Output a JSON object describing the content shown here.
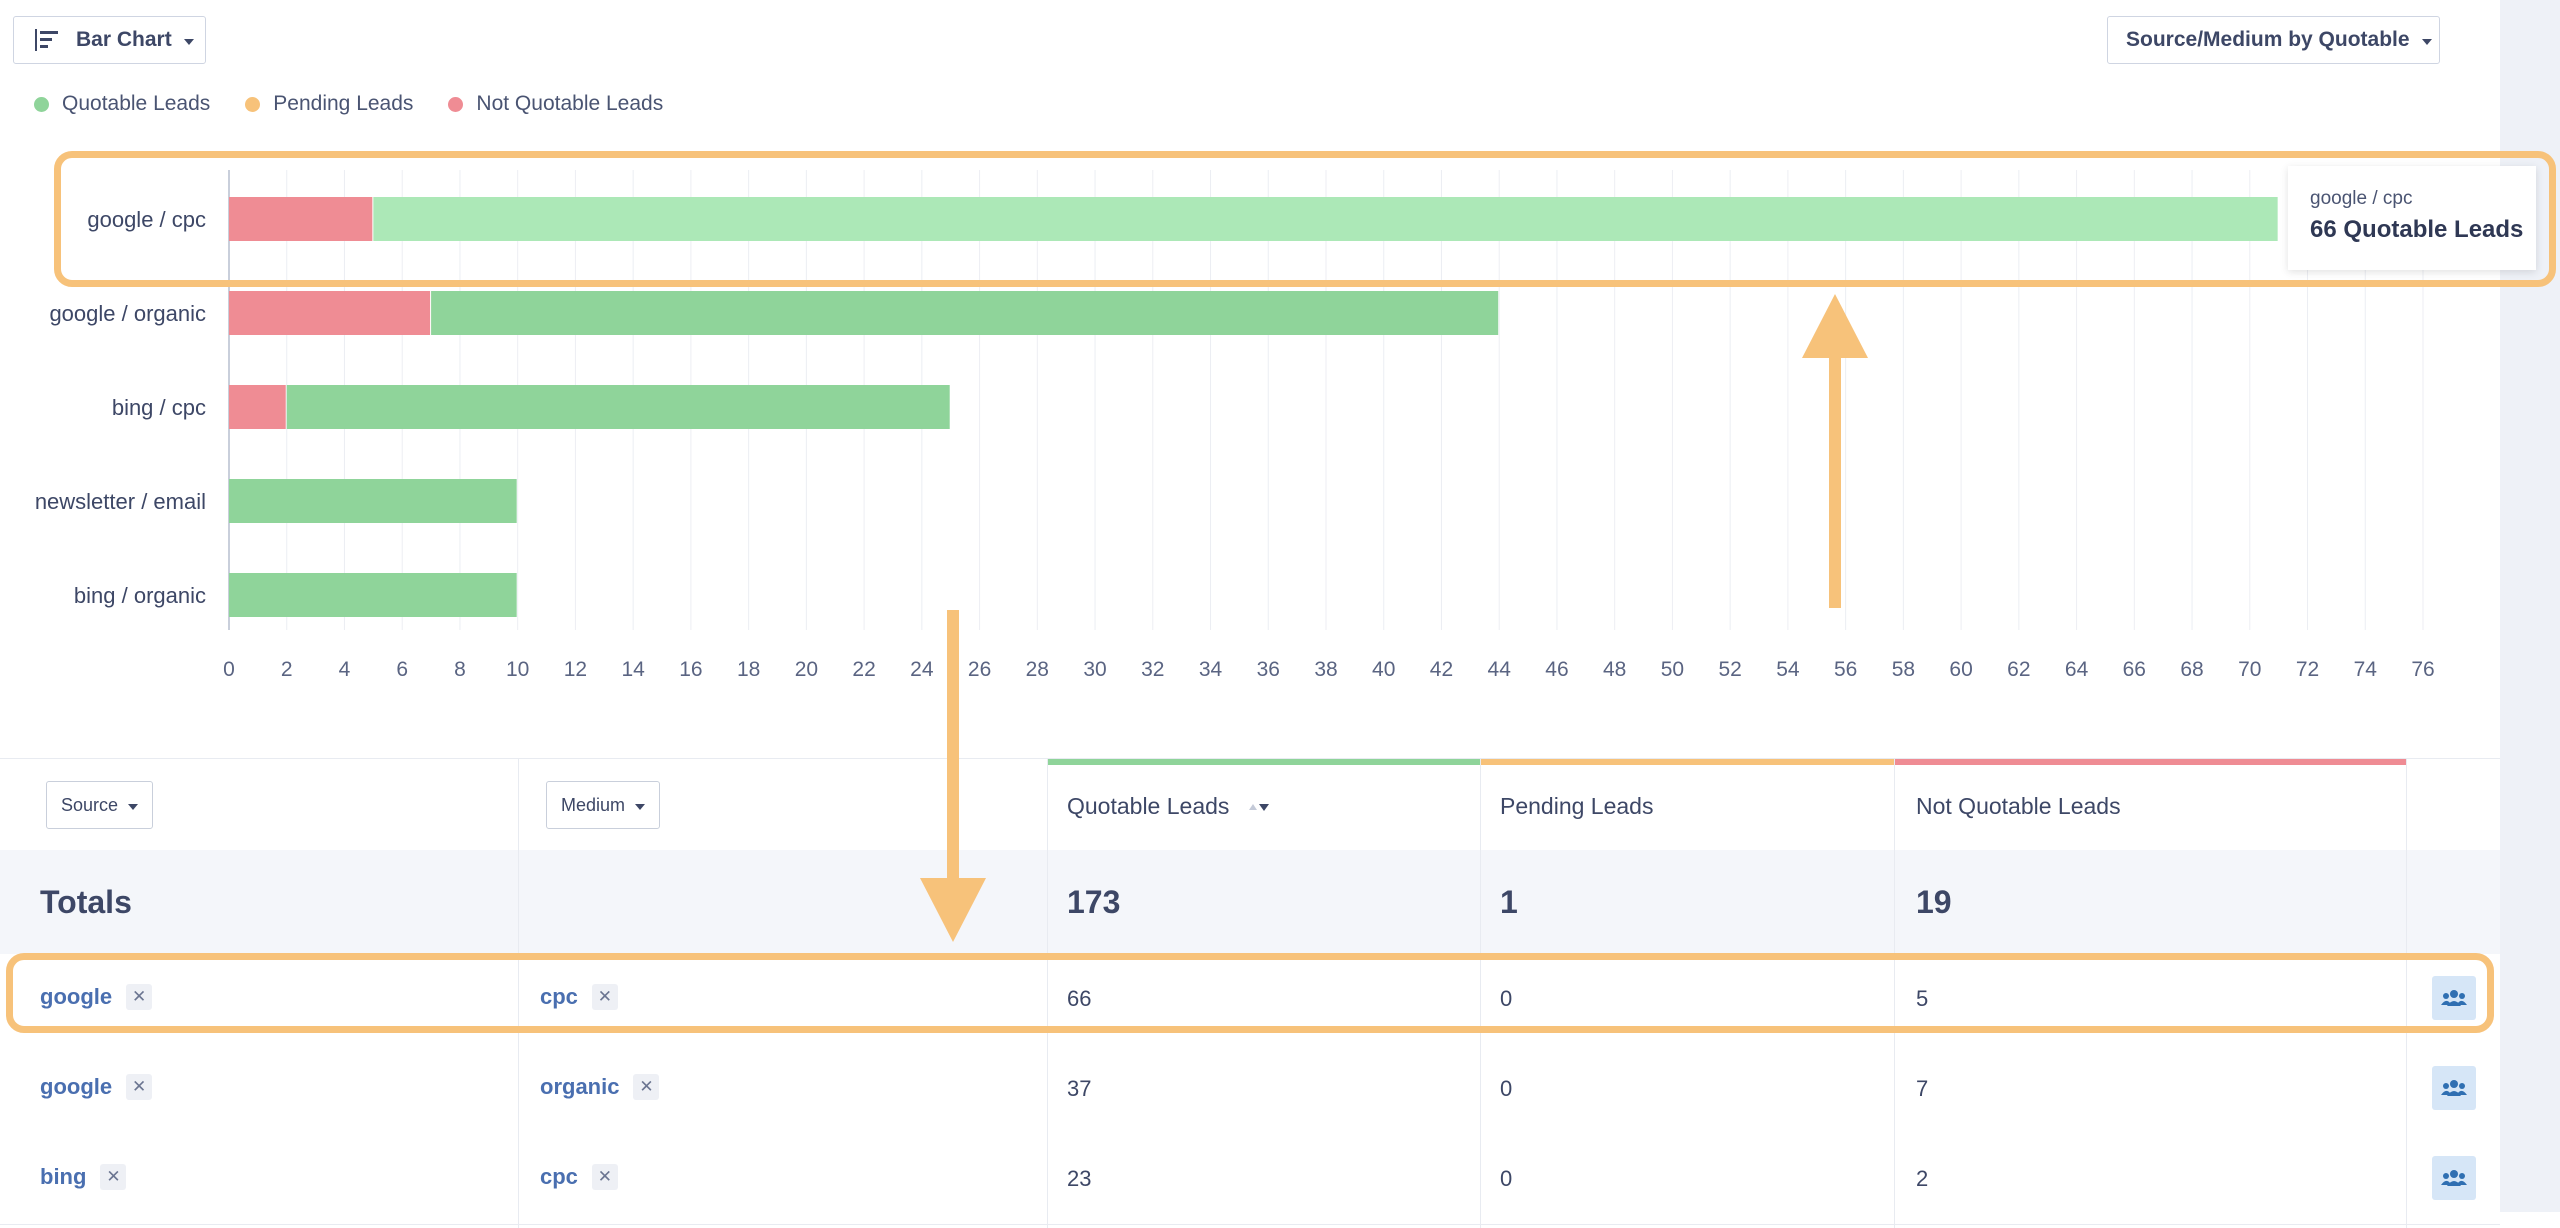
{
  "toolbar": {
    "chart_type_label": "Bar Chart",
    "group_by_label": "Source/Medium by Quotable"
  },
  "legend": [
    {
      "label": "Quotable Leads",
      "color": "#8fd49a"
    },
    {
      "label": "Pending Leads",
      "color": "#f7c27a"
    },
    {
      "label": "Not Quotable Leads",
      "color": "#ef8c94"
    }
  ],
  "tooltip": {
    "category": "google / cpc",
    "value_text": "66 Quotable Leads"
  },
  "chart_data": {
    "type": "bar",
    "orientation": "horizontal",
    "stacked": true,
    "categories": [
      "google / cpc",
      "google / organic",
      "bing / cpc",
      "newsletter / email",
      "bing / organic"
    ],
    "series": [
      {
        "name": "Not Quotable Leads",
        "color": "#ef8c94",
        "values": [
          5,
          7,
          2,
          0,
          0
        ]
      },
      {
        "name": "Quotable Leads",
        "color": "#8fd49a",
        "values": [
          66,
          37,
          23,
          10,
          10
        ]
      }
    ],
    "highlighted_category": "google / cpc",
    "xlim": [
      0,
      76
    ],
    "xticks": [
      0,
      2,
      4,
      6,
      8,
      10,
      12,
      14,
      16,
      18,
      20,
      22,
      24,
      26,
      28,
      30,
      32,
      34,
      36,
      38,
      40,
      42,
      44,
      46,
      48,
      50,
      52,
      54,
      56,
      58,
      60,
      62,
      64,
      66,
      68,
      70,
      72,
      74,
      76
    ],
    "grid": true,
    "legend_position": "top-left"
  },
  "table": {
    "source_filter_label": "Source",
    "medium_filter_label": "Medium",
    "columns": [
      {
        "label": "Quotable Leads",
        "color": "#8fd49a"
      },
      {
        "label": "Pending Leads",
        "color": "#f7c27a"
      },
      {
        "label": "Not Quotable Leads",
        "color": "#ef8c94"
      }
    ],
    "totals": {
      "label": "Totals",
      "quotable": "173",
      "pending": "1",
      "not_quotable": "19"
    },
    "rows": [
      {
        "source": "google",
        "medium": "cpc",
        "quotable": "66",
        "pending": "0",
        "not_quotable": "5"
      },
      {
        "source": "google",
        "medium": "organic",
        "quotable": "37",
        "pending": "0",
        "not_quotable": "7"
      },
      {
        "source": "bing",
        "medium": "cpc",
        "quotable": "23",
        "pending": "0",
        "not_quotable": "2"
      }
    ]
  }
}
